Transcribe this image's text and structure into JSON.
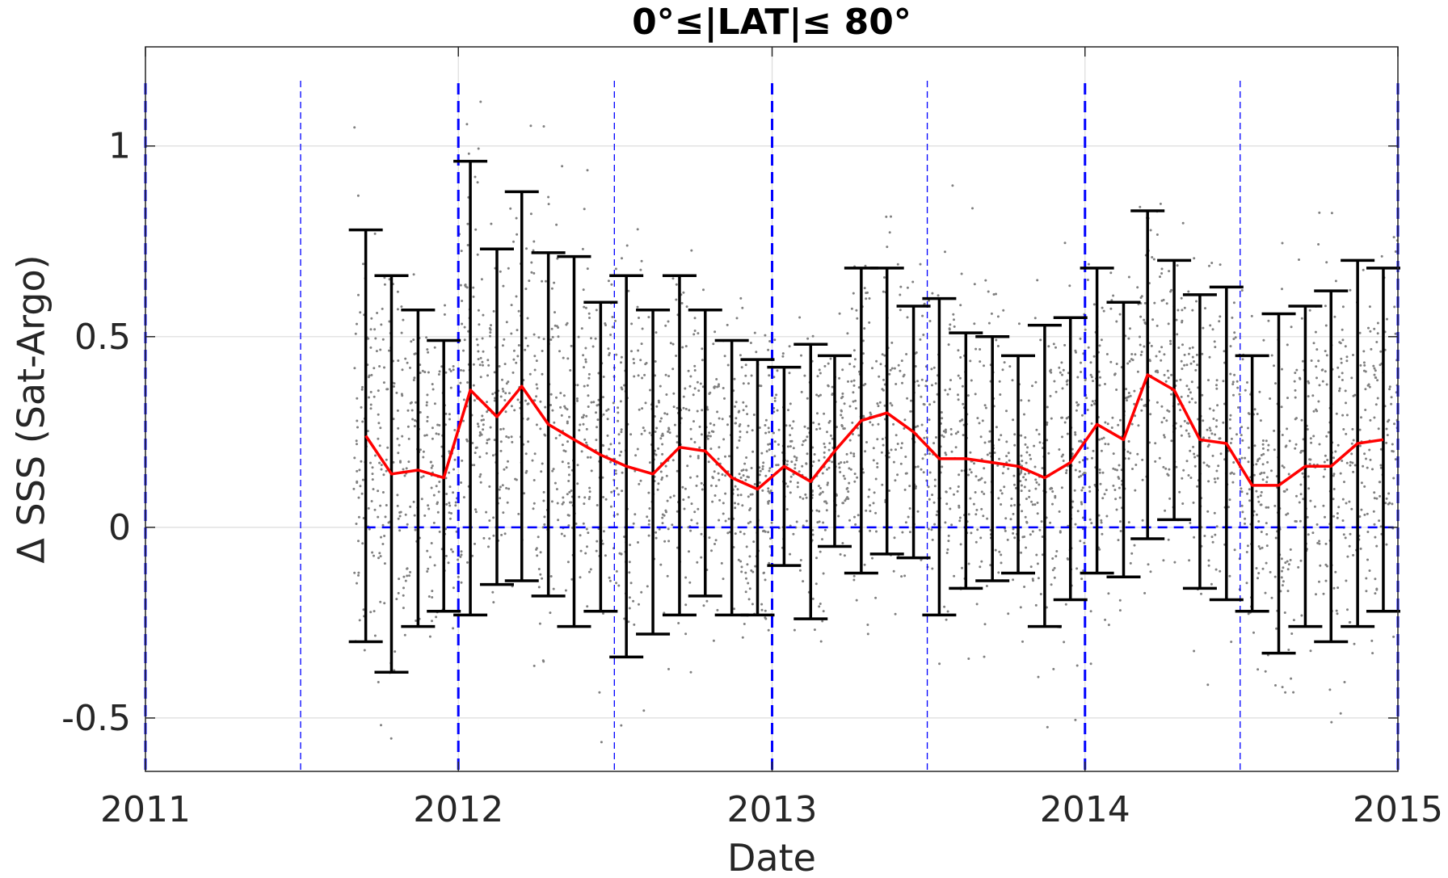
{
  "chart_data": {
    "type": "scatter",
    "title": "0°≤|LAT|≤ 80°",
    "xlabel": "Date",
    "ylabel": "Δ SSS (Sat-Argo)",
    "xlim": [
      "2011-01-01",
      "2015-01-01"
    ],
    "ylim": [
      -0.64,
      1.26
    ],
    "xticks": [
      "2011",
      "2012",
      "2013",
      "2014",
      "2015"
    ],
    "yticks": [
      -0.5,
      0,
      0.5,
      1
    ],
    "ytick_labels": [
      "-0.5",
      "0",
      "0.5",
      "1"
    ],
    "grid": true,
    "colors": {
      "mean_line": "#ff0000",
      "error_bars": "#000000",
      "scatter": "#808080",
      "reference_lines": "#0000ff"
    },
    "reference_lines": {
      "zero_line": {
        "y": 0,
        "x_from": "2011-09-15",
        "x_to": "2015-01-01",
        "style": "dashed"
      },
      "year_lines": [
        "2011-01-01",
        "2012-01-01",
        "2013-01-01",
        "2014-01-01",
        "2015-01-01"
      ],
      "half_year_lines": [
        "2011-07-01",
        "2012-07-01",
        "2013-07-01",
        "2014-07-01"
      ]
    },
    "series": [
      {
        "type": "line_with_error_bars",
        "x": [
          "2011-09-15",
          "2011-10-15",
          "2011-11-15",
          "2011-12-15",
          "2012-01-15",
          "2012-02-15",
          "2012-03-15",
          "2012-04-15",
          "2012-05-15",
          "2012-06-15",
          "2012-07-15",
          "2012-08-15",
          "2012-09-15",
          "2012-10-15",
          "2012-11-15",
          "2012-12-15",
          "2013-01-15",
          "2013-02-15",
          "2013-03-15",
          "2013-04-15",
          "2013-05-15",
          "2013-06-15",
          "2013-07-15",
          "2013-08-15",
          "2013-09-15",
          "2013-10-15",
          "2013-11-15",
          "2013-12-15",
          "2014-01-15",
          "2014-02-15",
          "2014-03-15",
          "2014-04-15",
          "2014-05-15",
          "2014-06-15",
          "2014-07-15",
          "2014-08-15",
          "2014-09-15",
          "2014-10-15",
          "2014-11-15",
          "2014-12-15"
        ],
        "values": [
          0.24,
          0.14,
          0.15,
          0.13,
          0.36,
          0.29,
          0.37,
          0.27,
          0.23,
          0.19,
          0.16,
          0.14,
          0.21,
          0.2,
          0.13,
          0.1,
          0.16,
          0.12,
          0.2,
          0.28,
          0.3,
          0.25,
          0.18,
          0.18,
          0.17,
          0.16,
          0.13,
          0.17,
          0.27,
          0.23,
          0.4,
          0.36,
          0.23,
          0.22,
          0.11,
          0.11,
          0.16,
          0.16,
          0.22,
          0.23
        ],
        "upper": [
          0.78,
          0.66,
          0.57,
          0.49,
          0.96,
          0.73,
          0.88,
          0.72,
          0.71,
          0.59,
          0.66,
          0.57,
          0.66,
          0.57,
          0.49,
          0.44,
          0.42,
          0.48,
          0.45,
          0.68,
          0.68,
          0.58,
          0.6,
          0.51,
          0.5,
          0.45,
          0.53,
          0.55,
          0.68,
          0.59,
          0.83,
          0.7,
          0.61,
          0.63,
          0.45,
          0.56,
          0.58,
          0.62,
          0.7,
          0.68
        ],
        "lower": [
          -0.3,
          -0.38,
          -0.26,
          -0.22,
          -0.23,
          -0.15,
          -0.14,
          -0.18,
          -0.26,
          -0.22,
          -0.34,
          -0.28,
          -0.23,
          -0.18,
          -0.23,
          -0.23,
          -0.1,
          -0.24,
          -0.05,
          -0.12,
          -0.07,
          -0.08,
          -0.23,
          -0.16,
          -0.14,
          -0.12,
          -0.26,
          -0.19,
          -0.12,
          -0.13,
          -0.03,
          0.02,
          -0.16,
          -0.19,
          -0.22,
          -0.33,
          -0.26,
          -0.3,
          -0.26,
          -0.22
        ]
      }
    ]
  }
}
